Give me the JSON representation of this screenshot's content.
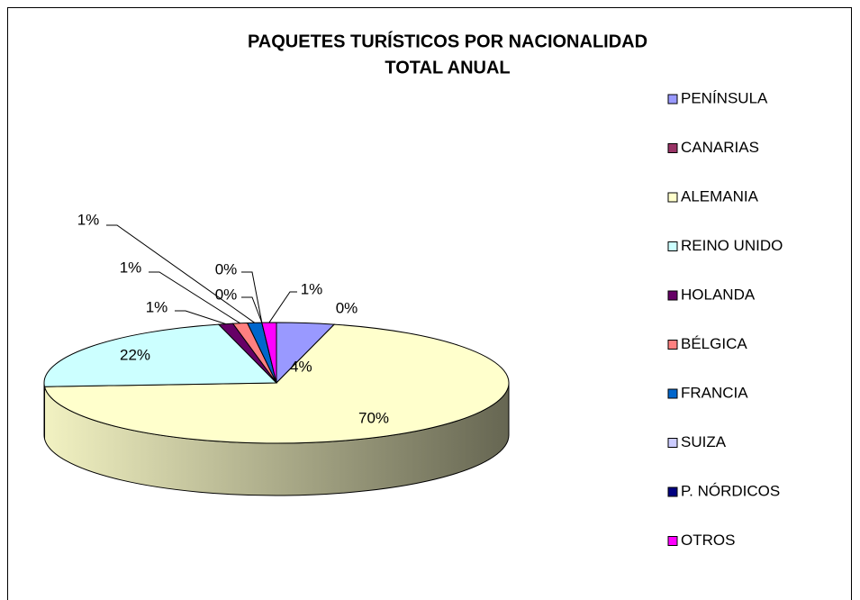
{
  "chart_data": {
    "type": "pie3d",
    "title": "PAQUETES TURÍSTICOS POR NACIONALIDAD",
    "subtitle": "TOTAL ANUAL",
    "categories": [
      "PENÍNSULA",
      "CANARIAS",
      "ALEMANIA",
      "REINO UNIDO",
      "HOLANDA",
      "BÉLGICA",
      "FRANCIA",
      "SUIZA",
      "P. NÓRDICOS",
      "OTROS"
    ],
    "values": [
      4,
      0,
      70,
      22,
      1,
      1,
      1,
      0,
      0,
      1
    ],
    "value_labels": [
      "4%",
      "0%",
      "70%",
      "22%",
      "1%",
      "1%",
      "1%",
      "0%",
      "0%",
      "1%"
    ],
    "colors": [
      "#9999ff",
      "#993366",
      "#ffffcc",
      "#ccffff",
      "#660066",
      "#ff8080",
      "#0066cc",
      "#ccccff",
      "#000080",
      "#ff00ff"
    ],
    "legend": "right"
  }
}
